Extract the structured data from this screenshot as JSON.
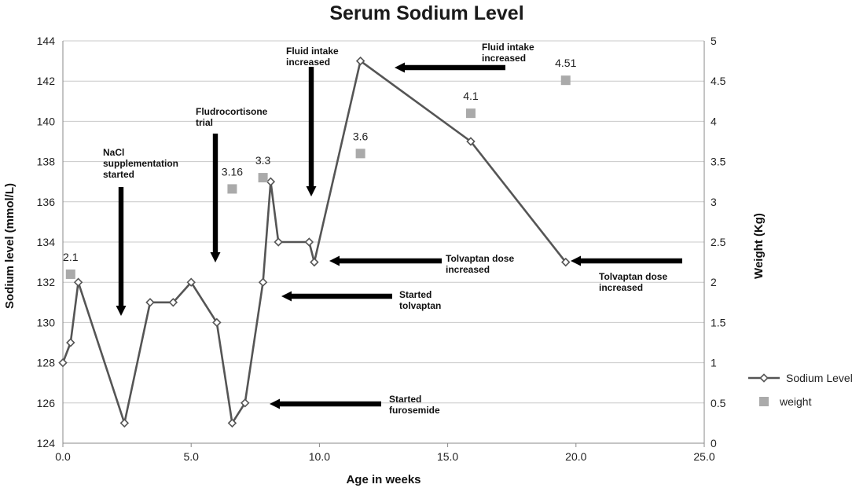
{
  "chart_data": {
    "type": "line",
    "title": "Serum Sodium Level",
    "xlabel": "Age in weeks",
    "ylabel": "Sodium level (mmol/L)",
    "y2label": "Weight (Kg)",
    "xlim": [
      0,
      25
    ],
    "ylim": [
      124,
      144
    ],
    "y2lim": [
      0,
      5
    ],
    "x_ticks": [
      "0.0",
      "5.0",
      "10.0",
      "15.0",
      "20.0",
      "25.0"
    ],
    "y_ticks": [
      "124",
      "126",
      "128",
      "130",
      "132",
      "134",
      "136",
      "138",
      "140",
      "142",
      "144"
    ],
    "y2_ticks": [
      "0",
      "0.5",
      "1",
      "1.5",
      "2",
      "2.5",
      "3",
      "3.5",
      "4",
      "4.5",
      "5"
    ],
    "grid": true,
    "legend_position": "right",
    "series": [
      {
        "name": "Sodium Level",
        "kind": "line",
        "axis": "left",
        "color": "#555555",
        "marker": "diamond",
        "x": [
          0,
          0.3,
          0.6,
          2.4,
          3.4,
          4.3,
          5.0,
          6.0,
          6.6,
          7.1,
          7.8,
          8.1,
          8.4,
          9.6,
          9.8,
          11.6,
          15.9,
          19.6
        ],
        "y": [
          128,
          129,
          132,
          125,
          131,
          131,
          132,
          130,
          125,
          126,
          132,
          137,
          134,
          134,
          133,
          143,
          139,
          133
        ]
      },
      {
        "name": "weight",
        "kind": "scatter",
        "axis": "right",
        "color": "#aaaaaa",
        "marker": "square",
        "points": [
          {
            "x": 0.3,
            "y": 2.1,
            "label": "2.1"
          },
          {
            "x": 6.6,
            "y": 3.16,
            "label": "3.16"
          },
          {
            "x": 7.8,
            "y": 3.3,
            "label": "3.3"
          },
          {
            "x": 11.6,
            "y": 3.6,
            "label": "3.6"
          },
          {
            "x": 15.9,
            "y": 4.1,
            "label": "4.1"
          },
          {
            "x": 19.6,
            "y": 4.51,
            "label": "4.51"
          }
        ]
      }
    ],
    "annotations": [
      {
        "lines": [
          "NaCl",
          "supplementation",
          "started"
        ]
      },
      {
        "lines": [
          "Fludrocortisone",
          "trial"
        ]
      },
      {
        "lines": [
          "Fluid intake",
          "increased"
        ]
      },
      {
        "lines": [
          "Fluid intake",
          "increased"
        ]
      },
      {
        "lines": [
          "Tolvaptan dose",
          "increased"
        ]
      },
      {
        "lines": [
          "Tolvaptan dose",
          "increased"
        ]
      },
      {
        "lines": [
          "Started",
          "tolvaptan"
        ]
      },
      {
        "lines": [
          "Started",
          "furosemide"
        ]
      }
    ]
  }
}
